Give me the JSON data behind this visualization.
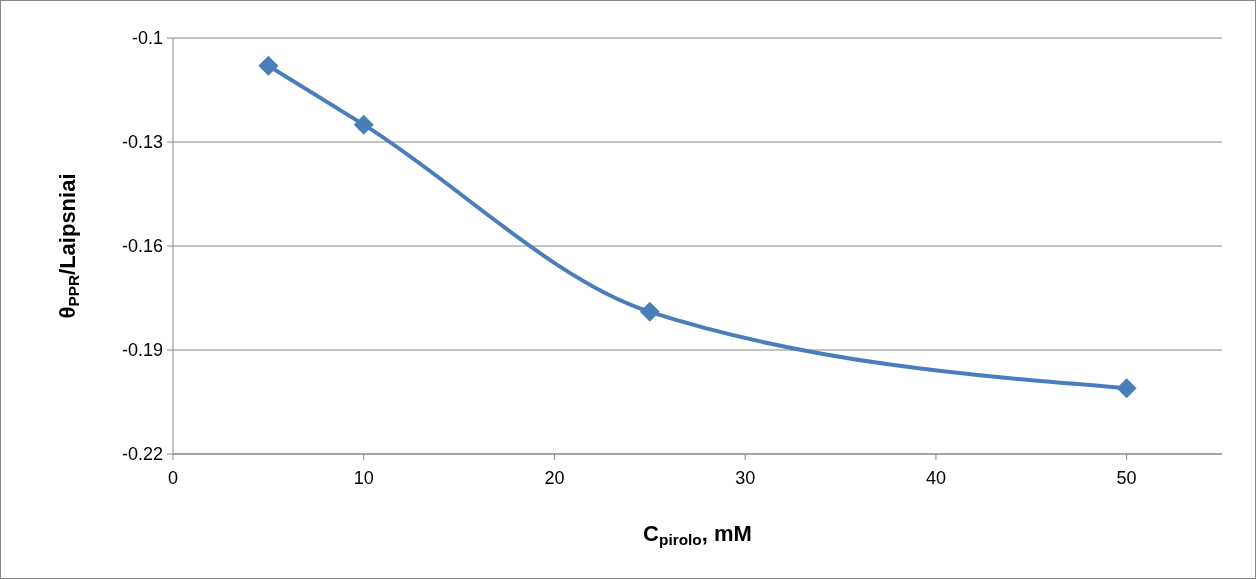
{
  "chart_data": {
    "type": "line",
    "xlabel": "C$_{pirolo}$, mM",
    "ylabel": "θ$_{PPR}$/Laipsniai",
    "x": [
      5,
      10,
      25,
      50
    ],
    "series": [
      {
        "color": "#4a7ebb",
        "values": [
          -0.108,
          -0.125,
          -0.179,
          -0.201
        ]
      }
    ],
    "xlim": [
      0,
      55
    ],
    "xticks": [
      0,
      10,
      20,
      30,
      40,
      50
    ],
    "ylim": [
      -0.22,
      -0.1
    ],
    "yticks": [
      -0.22,
      -0.19,
      -0.16,
      -0.13,
      -0.1
    ],
    "grid": "y",
    "marker": "diamond",
    "line_style": "solid"
  }
}
